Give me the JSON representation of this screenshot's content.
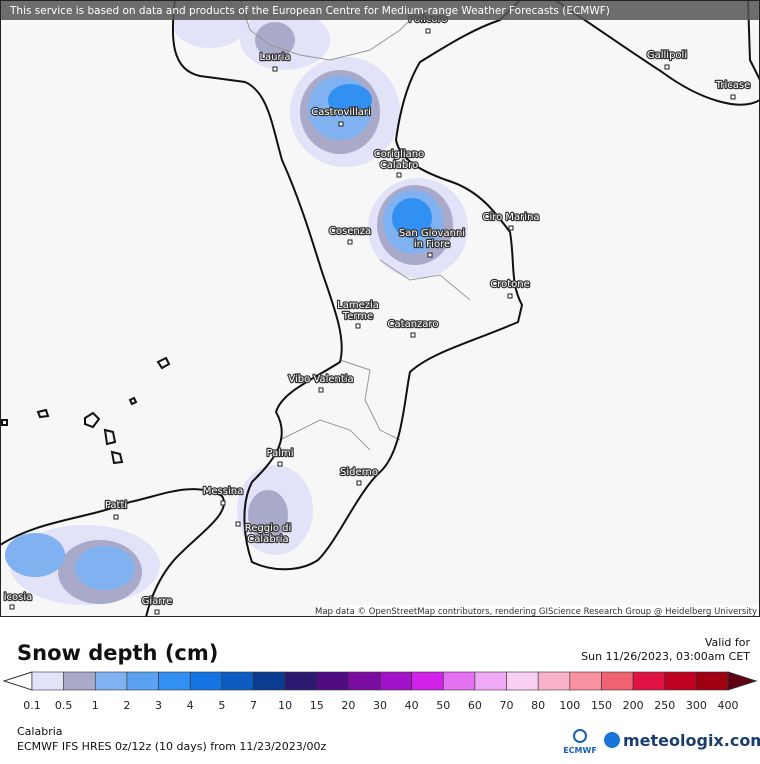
{
  "header": {
    "notice": "This service is based on data and products of the European Centre for Medium-range Weather Forecasts (ECMWF)"
  },
  "map": {
    "cities": [
      {
        "lines": [
          "Policoro"
        ]
      },
      {
        "lines": [
          "Lauria"
        ]
      },
      {
        "lines": [
          "Gallipoli"
        ]
      },
      {
        "lines": [
          "Tricase"
        ]
      },
      {
        "lines": [
          "Castrovillari"
        ]
      },
      {
        "lines": [
          "Corigliano",
          "Calabro"
        ]
      },
      {
        "lines": [
          "Ciro Marina"
        ]
      },
      {
        "lines": [
          "Cosenza"
        ]
      },
      {
        "lines": [
          "San Giovanni",
          "in Fiore"
        ]
      },
      {
        "lines": [
          "Crotone"
        ]
      },
      {
        "lines": [
          "Lamezia",
          "Terme"
        ]
      },
      {
        "lines": [
          "Catanzaro"
        ]
      },
      {
        "lines": [
          "Vibo Valentia"
        ]
      },
      {
        "lines": [
          "Palmi"
        ]
      },
      {
        "lines": [
          "Siderno"
        ]
      },
      {
        "lines": [
          "Messina"
        ]
      },
      {
        "lines": [
          "Patti"
        ]
      },
      {
        "lines": [
          "Reggio di",
          "Calabria"
        ]
      },
      {
        "lines": [
          "Giarre"
        ]
      },
      {
        "lines": [
          "icosia"
        ]
      }
    ],
    "attribution": "Map data © OpenStreetMap contributors, rendering GIScience Research Group @ Heidelberg University"
  },
  "legend": {
    "title": "Snow depth (cm)",
    "valid_label": "Valid for",
    "valid_time": "Sun 11/26/2023, 03:00am CET",
    "ticks": [
      0.1,
      0.5,
      1,
      2,
      3,
      4,
      5,
      7,
      10,
      15,
      20,
      30,
      40,
      50,
      60,
      70,
      80,
      100,
      150,
      200,
      250,
      300,
      400
    ],
    "colors": [
      "#e2e2f8",
      "#a9a9c9",
      "#80b2f2",
      "#5ca2f2",
      "#3290f2",
      "#1474e2",
      "#0c5cc2",
      "#0a3c92",
      "#2c1a72",
      "#520c82",
      "#7c0ca2",
      "#a212ca",
      "#d022e8",
      "#e272f2",
      "#f0aaf8",
      "#f8cef2",
      "#f8b2ca",
      "#f892a2",
      "#f06272",
      "#e01242",
      "#c00222",
      "#a00012"
    ],
    "over_color": "#600012"
  },
  "footer": {
    "region": "Calabria",
    "model": "ECMWF IFS HRES 0z/12z (10 days) from 11/23/2023/00z",
    "ecmwf_logo": "ECMWF",
    "brand": "meteologix.com"
  }
}
